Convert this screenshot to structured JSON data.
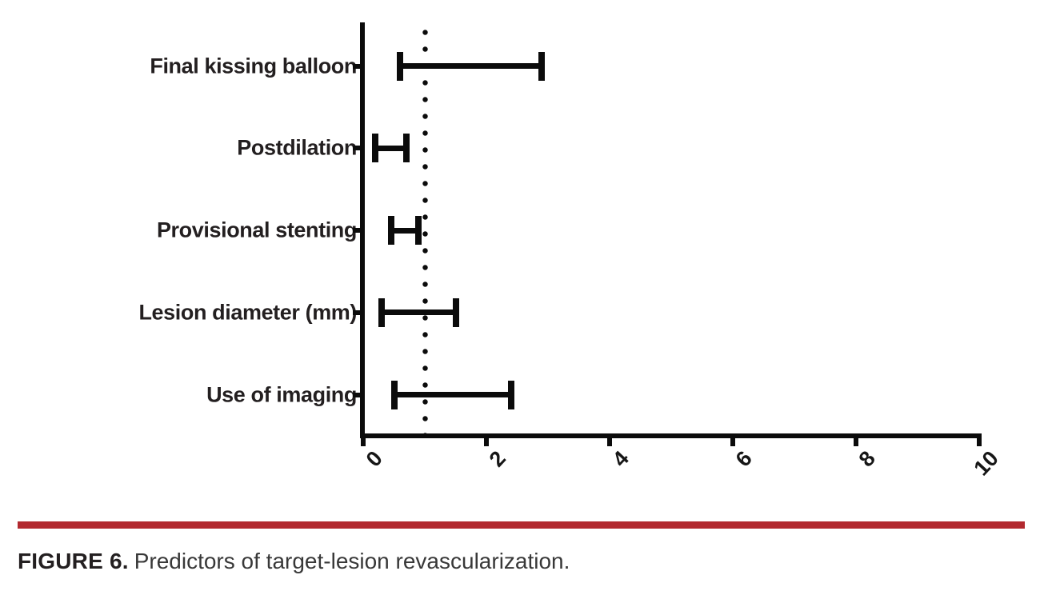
{
  "figure": {
    "caption_label": "FIGURE 6.",
    "caption_text": "Predictors of target-lesion revascularization.",
    "rule_color": "#b2292f"
  },
  "chart_data": {
    "type": "scatter",
    "subtype": "horizontal-interval-forest-plot",
    "orientation": "horizontal",
    "title": "",
    "xlabel": "",
    "ylabel": "",
    "grid": false,
    "legend": false,
    "xlim": [
      0,
      10
    ],
    "x_ticks": [
      0,
      2,
      4,
      6,
      8,
      10
    ],
    "x_tick_labels": [
      "0",
      "2",
      "4",
      "6",
      "8",
      "10"
    ],
    "reference_line_x": 1,
    "categories": [
      "Final kissing balloon",
      "Postdilation",
      "Provisional stenting",
      "Lesion diameter (mm)",
      "Use of imaging"
    ],
    "series": [
      {
        "name": "interval",
        "intervals": [
          {
            "category": "Final kissing balloon",
            "low": 0.6,
            "high": 2.9
          },
          {
            "category": "Postdilation",
            "low": 0.2,
            "high": 0.7
          },
          {
            "category": "Provisional stenting",
            "low": 0.45,
            "high": 0.9
          },
          {
            "category": "Lesion diameter (mm)",
            "low": 0.3,
            "high": 1.5
          },
          {
            "category": "Use of imaging",
            "low": 0.5,
            "high": 2.4
          }
        ]
      }
    ],
    "bar_color": "#0b0b0b",
    "axis_color": "#0b0b0b",
    "label_color": "#231f20"
  }
}
